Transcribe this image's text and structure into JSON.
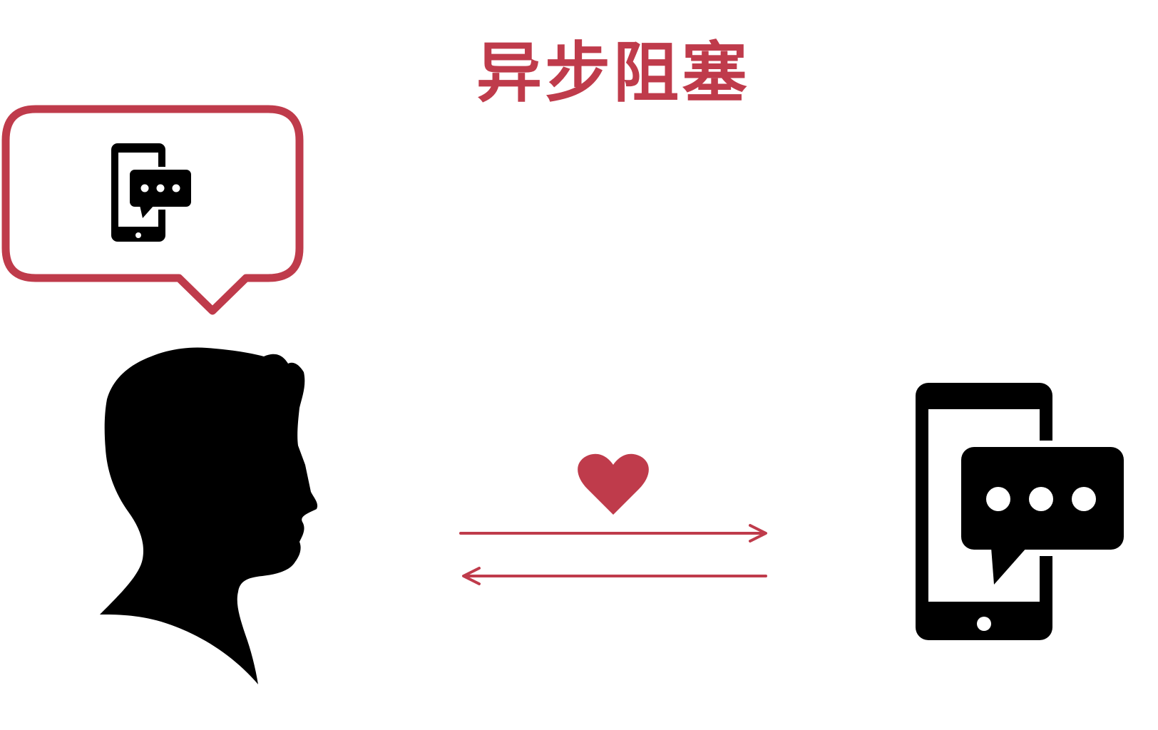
{
  "title": "异步阻塞",
  "colors": {
    "accent": "#bf3b4b",
    "ink": "#000000",
    "background": "#ffffff"
  },
  "icons": {
    "thought_bubble_content": "phone-chat-icon",
    "person": "person-silhouette-icon",
    "heart": "heart-icon",
    "request_arrow": "arrow-right-icon",
    "response_arrow": "arrow-left-icon",
    "device": "phone-chat-icon"
  }
}
